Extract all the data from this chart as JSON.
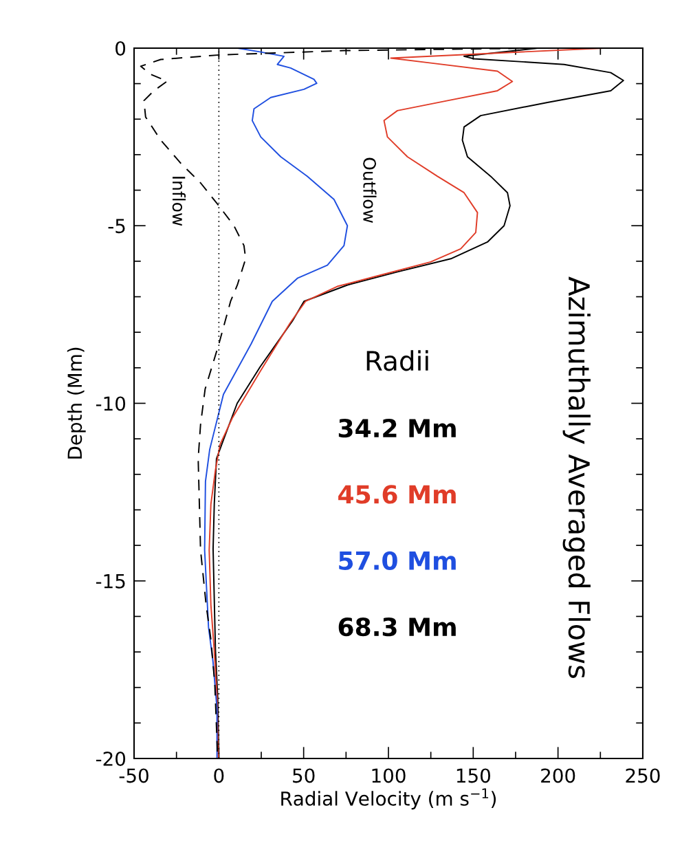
{
  "chart_data": {
    "type": "line",
    "title": "Azimuthally Averaged Flows",
    "xlabel": "Radial Velocity (m s$^{−1}$)",
    "ylabel": "Depth (Mm)",
    "legend_title": "Radii",
    "legend": "right",
    "xlim": [
      -50,
      250
    ],
    "ylim": [
      -20,
      0
    ],
    "xticks": [
      -50,
      {
        "value": -25,
        "label": null
      },
      0,
      {
        "value": 25,
        "label": null
      },
      50,
      {
        "value": 75,
        "label": null
      },
      100,
      {
        "value": 125,
        "label": null
      },
      150,
      {
        "value": 175,
        "label": null
      },
      200,
      {
        "value": 225,
        "label": null
      },
      250
    ],
    "yticks": [
      -20,
      {
        "value": -19,
        "label": null
      },
      {
        "value": -18,
        "label": null
      },
      {
        "value": -17,
        "label": null
      },
      {
        "value": -16,
        "label": null
      },
      -15,
      {
        "value": -14,
        "label": null
      },
      {
        "value": -13,
        "label": null
      },
      {
        "value": -12,
        "label": null
      },
      {
        "value": -11,
        "label": null
      },
      -10,
      {
        "value": -9,
        "label": null
      },
      {
        "value": -8,
        "label": null
      },
      {
        "value": -7,
        "label": null
      },
      {
        "value": -6,
        "label": null
      },
      -5,
      {
        "value": -4,
        "label": null
      },
      {
        "value": -3,
        "label": null
      },
      {
        "value": -2,
        "label": null
      },
      {
        "value": -1,
        "label": null
      },
      0
    ],
    "grid": false,
    "ref_lines": [
      {
        "axis": "x",
        "value": 0,
        "line_style": "dotted",
        "color": "#000000"
      }
    ],
    "annotations": [
      "Inflow",
      "Outflow"
    ],
    "series": [
      {
        "name": "34.2 Mm",
        "color": "#000000",
        "line_style": "solid",
        "x": [
          188,
          144.6,
          150.5,
          203.6,
          231.1,
          238.6,
          231.1,
          193.8,
          154.4,
          144.6,
          143.6,
          146.6,
          160.3,
          170.2,
          171.7,
          168.2,
          158.4,
          136.8,
          105.3,
          75.8,
          50.2,
          43.4,
          24.4,
          10.8,
          2.7,
          -1.4,
          -2.7,
          -3.4,
          -2.0,
          -0.7,
          0
        ],
        "values": [
          0,
          -0.23,
          -0.3,
          -0.46,
          -0.69,
          -0.91,
          -1.2,
          -1.53,
          -1.9,
          -2.22,
          -2.59,
          -3.06,
          -3.61,
          -4.07,
          -4.44,
          -5.0,
          -5.46,
          -5.93,
          -6.3,
          -6.67,
          -7.13,
          -7.68,
          -8.97,
          -10.0,
          -11.03,
          -11.56,
          -12.83,
          -14.1,
          -16.97,
          -18.26,
          -20
        ]
      },
      {
        "name": "45.6 Mm",
        "color": "#e03c28",
        "line_style": "solid",
        "x": [
          227,
          101.4,
          125,
          164.3,
          173.1,
          164.3,
          134.8,
          105.3,
          97.4,
          99.4,
          111.2,
          128.9,
          144.6,
          152.5,
          151.5,
          142.6,
          124.9,
          95.4,
          69.8,
          51.1,
          42.0,
          24.4,
          8.1,
          0.7,
          -2.0,
          -4.7,
          -5.7,
          -4.7,
          -2.7,
          -1.1,
          -0.3
        ],
        "values": [
          0,
          -0.28,
          -0.42,
          -0.65,
          -0.94,
          -1.2,
          -1.48,
          -1.76,
          -2.04,
          -2.5,
          -3.06,
          -3.61,
          -4.07,
          -4.63,
          -5.19,
          -5.65,
          -6.02,
          -6.39,
          -6.71,
          -7.13,
          -7.74,
          -9.1,
          -10.4,
          -11.16,
          -11.87,
          -12.84,
          -14.13,
          -15.68,
          -16.97,
          -18.26,
          -20
        ]
      },
      {
        "name": "57.0 Mm",
        "color": "#1f4fe0",
        "line_style": "solid",
        "x": [
          10.9,
          24.7,
          38.4,
          34.5,
          42.3,
          56.1,
          57.7,
          50.2,
          30.6,
          20.7,
          19.7,
          24.7,
          36.5,
          52.2,
          67.9,
          75.8,
          73.8,
          64.0,
          46.3,
          31.5,
          19.0,
          2.7,
          -5.4,
          -7.9,
          -8.4,
          -6.1,
          -3.4,
          -1.1,
          -1.1
        ],
        "values": [
          0,
          -0.11,
          -0.23,
          -0.46,
          -0.56,
          -0.88,
          -0.99,
          -1.16,
          -1.39,
          -1.71,
          -2.04,
          -2.5,
          -3.06,
          -3.61,
          -4.26,
          -5.0,
          -5.56,
          -6.11,
          -6.48,
          -7.13,
          -8.33,
          -9.75,
          -11.3,
          -12.2,
          -14.13,
          -16.3,
          -17.3,
          -18.6,
          -20
        ]
      },
      {
        "name": "68.3 Mm",
        "color": "#000000",
        "line_style": "dashed",
        "x": [
          188,
          73.8,
          1.1,
          -34.3,
          -46.1,
          -40.2,
          -30.4,
          -38.3,
          -44.2,
          -43.2,
          -34.3,
          -22.5,
          -10.7,
          0,
          8.9,
          14.8,
          15.8,
          10.9,
          6.9,
          0,
          -8.1,
          -10.8,
          -12.2,
          -11.5,
          -10.8,
          -7.5,
          -4.7,
          -2.4,
          -0.7
        ],
        "values": [
          0,
          -0.07,
          -0.19,
          -0.32,
          -0.51,
          -0.74,
          -0.93,
          -1.2,
          -1.48,
          -1.94,
          -2.59,
          -3.24,
          -3.8,
          -4.44,
          -5.0,
          -5.56,
          -5.93,
          -6.67,
          -7.13,
          -8.33,
          -9.6,
          -10.6,
          -11.56,
          -12.84,
          -14.13,
          -15.68,
          -16.65,
          -17.9,
          -20
        ]
      }
    ]
  }
}
